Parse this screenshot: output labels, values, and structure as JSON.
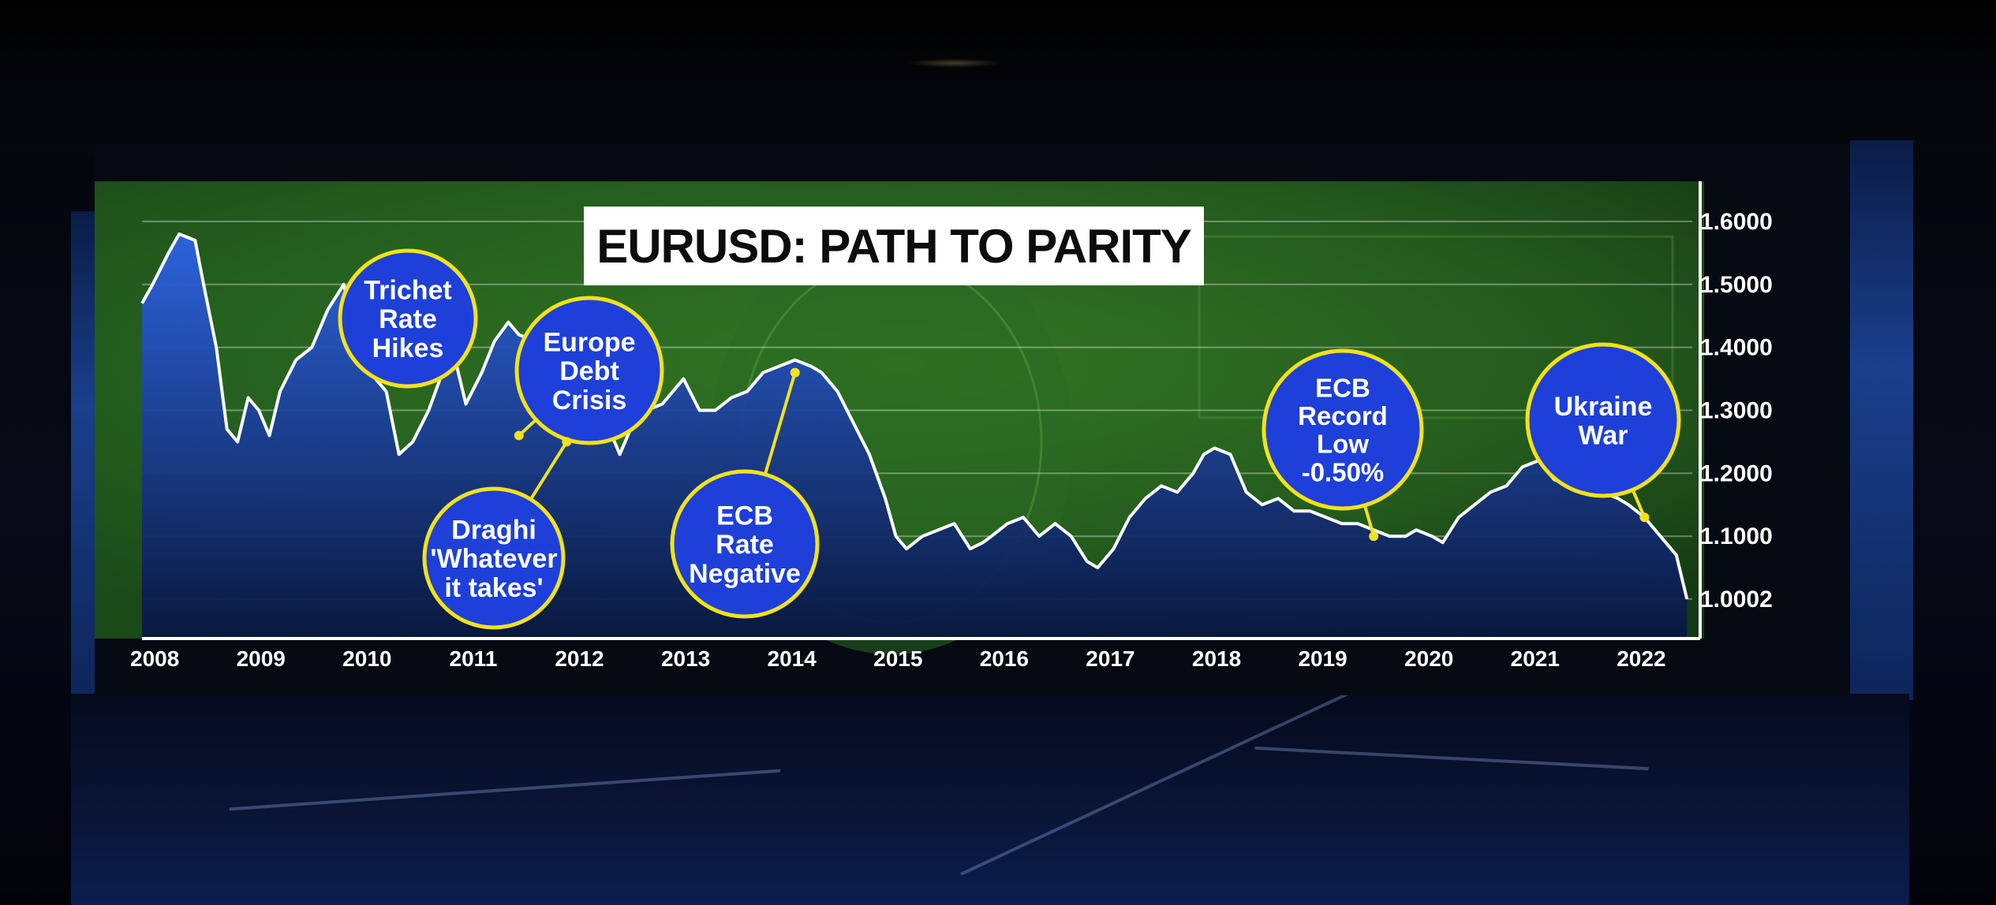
{
  "colors": {
    "bubble_fill": "#1e40d8",
    "bubble_stroke": "#f2e21b",
    "area_top": "#2a5fe0",
    "area_bottom": "#0a1a4a",
    "line": "#ffffff",
    "screen_green": "#3f8f2c"
  },
  "chart_data": {
    "type": "area",
    "title": "EURUSD: PATH TO PARITY",
    "xlabel": "",
    "ylabel": "",
    "x_tick_labels": [
      "2008",
      "2009",
      "2010",
      "2011",
      "2012",
      "2013",
      "2014",
      "2015",
      "2016",
      "2017",
      "2018",
      "2019",
      "2020",
      "2021",
      "2022"
    ],
    "y_tick_labels": [
      "1.6000",
      "1.5000",
      "1.4000",
      "1.3000",
      "1.2000",
      "1.1000",
      "1.0002"
    ],
    "y_tick_values": [
      1.6,
      1.5,
      1.4,
      1.3,
      1.2,
      1.1,
      1.0002
    ],
    "xlim": [
      2008.0,
      2022.6
    ],
    "ylim": [
      0.94,
      1.67
    ],
    "grid": true,
    "series": [
      {
        "x": [
          2008.0,
          2008.1,
          2008.25,
          2008.35,
          2008.5,
          2008.58,
          2008.7,
          2008.8,
          2008.9,
          2009.0,
          2009.1,
          2009.2,
          2009.3,
          2009.45,
          2009.6,
          2009.75,
          2009.9,
          2010.0,
          2010.15,
          2010.3,
          2010.42,
          2010.55,
          2010.7,
          2010.85,
          2010.95,
          2011.05,
          2011.2,
          2011.32,
          2011.45,
          2011.55,
          2011.7,
          2011.85,
          2011.95,
          2012.05,
          2012.2,
          2012.35,
          2012.5,
          2012.6,
          2012.75,
          2012.9,
          2013.0,
          2013.1,
          2013.25,
          2013.4,
          2013.55,
          2013.7,
          2013.85,
          2014.0,
          2014.15,
          2014.3,
          2014.4,
          2014.55,
          2014.7,
          2014.85,
          2015.0,
          2015.1,
          2015.2,
          2015.35,
          2015.5,
          2015.65,
          2015.8,
          2015.92,
          2016.0,
          2016.15,
          2016.3,
          2016.45,
          2016.6,
          2016.75,
          2016.9,
          2017.0,
          2017.15,
          2017.3,
          2017.45,
          2017.6,
          2017.75,
          2017.9,
          2018.0,
          2018.1,
          2018.25,
          2018.4,
          2018.55,
          2018.7,
          2018.85,
          2019.0,
          2019.15,
          2019.3,
          2019.45,
          2019.6,
          2019.75,
          2019.9,
          2020.0,
          2020.15,
          2020.25,
          2020.4,
          2020.55,
          2020.7,
          2020.85,
          2021.0,
          2021.15,
          2021.3,
          2021.45,
          2021.6,
          2021.75,
          2021.9,
          2022.0,
          2022.15,
          2022.3,
          2022.45,
          2022.55
        ],
        "y": [
          1.47,
          1.5,
          1.55,
          1.58,
          1.57,
          1.5,
          1.4,
          1.27,
          1.25,
          1.32,
          1.3,
          1.26,
          1.33,
          1.38,
          1.4,
          1.46,
          1.5,
          1.43,
          1.36,
          1.33,
          1.23,
          1.25,
          1.3,
          1.37,
          1.38,
          1.31,
          1.36,
          1.41,
          1.44,
          1.42,
          1.41,
          1.36,
          1.3,
          1.31,
          1.32,
          1.29,
          1.23,
          1.27,
          1.3,
          1.31,
          1.33,
          1.35,
          1.3,
          1.3,
          1.32,
          1.33,
          1.36,
          1.37,
          1.38,
          1.37,
          1.36,
          1.33,
          1.28,
          1.23,
          1.16,
          1.1,
          1.08,
          1.1,
          1.11,
          1.12,
          1.08,
          1.09,
          1.1,
          1.12,
          1.13,
          1.1,
          1.12,
          1.1,
          1.06,
          1.05,
          1.08,
          1.13,
          1.16,
          1.18,
          1.17,
          1.2,
          1.23,
          1.24,
          1.23,
          1.17,
          1.15,
          1.16,
          1.14,
          1.14,
          1.13,
          1.12,
          1.12,
          1.11,
          1.1,
          1.1,
          1.11,
          1.1,
          1.09,
          1.13,
          1.15,
          1.17,
          1.18,
          1.21,
          1.22,
          1.19,
          1.18,
          1.2,
          1.17,
          1.16,
          1.15,
          1.13,
          1.1,
          1.07,
          1.0002
        ]
      }
    ],
    "annotations": [
      {
        "lines": [
          "Trichet",
          "Rate",
          "Hikes"
        ],
        "x": 2011.05,
        "y": 1.4
      },
      {
        "lines": [
          "Europe",
          "Debt",
          "Crisis"
        ],
        "x": 2011.55,
        "y": 1.26
      },
      {
        "lines": [
          "Draghi",
          "'Whatever",
          "it takes'"
        ],
        "x": 2012.0,
        "y": 1.25
      },
      {
        "lines": [
          "ECB",
          "Rate",
          "Negative"
        ],
        "x": 2014.15,
        "y": 1.36
      },
      {
        "lines": [
          "ECB",
          "Record",
          "Low",
          "-0.50%"
        ],
        "x": 2019.6,
        "y": 1.1
      },
      {
        "lines": [
          "Ukraine",
          "War"
        ],
        "x": 2022.15,
        "y": 1.13
      }
    ]
  }
}
